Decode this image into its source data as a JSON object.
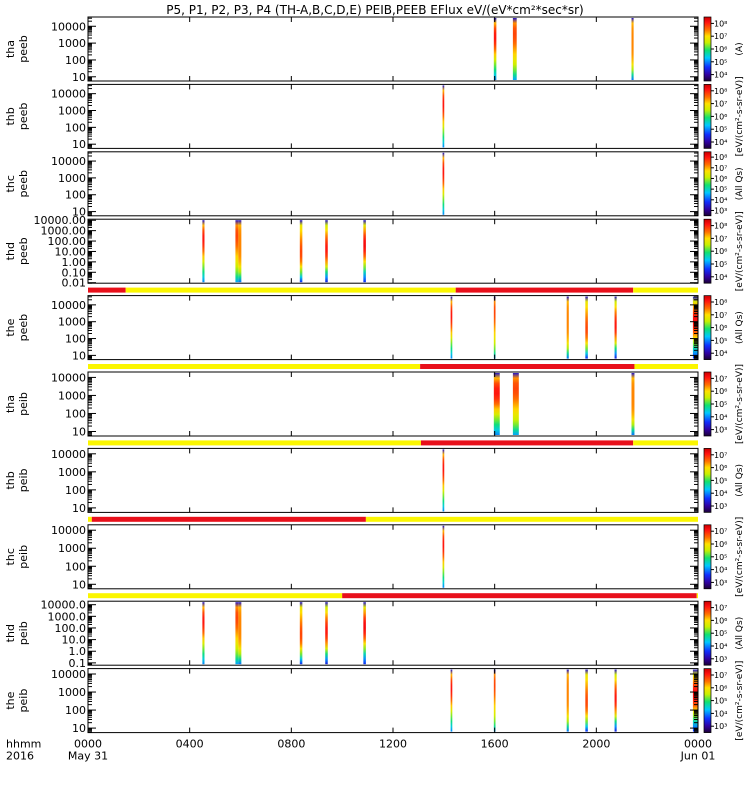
{
  "title": "P5, P1, P2, P3, P4 (TH-A,B,C,D,E) PEIB,PEEB EFlux eV/(eV*cm²*sec*sr)",
  "colors": {
    "bar_red": "#e8101b",
    "bar_yellow": "#fbf600"
  },
  "chart_data": {
    "type": "heatmap",
    "x_unit": "hhmm",
    "xlim": [
      0,
      1440
    ],
    "x_ticks": [
      "0000",
      "0400",
      "0800",
      "1200",
      "1600",
      "2000",
      "0000"
    ],
    "x_ticks_minutes": [
      0,
      240,
      480,
      720,
      960,
      1200,
      1440
    ],
    "x_year": "2016",
    "x_date_start": "May 31",
    "x_date_end": "Jun 01",
    "panels": [
      {
        "probe": "tha",
        "product": "peeb",
        "ylabel": [
          "tha",
          "peeb"
        ],
        "ylim_log": [
          0.75,
          4.55
        ],
        "y_ticks": [
          "10",
          "100",
          "1000",
          "10000"
        ],
        "y_ticks_val": [
          10,
          100,
          1000,
          10000
        ],
        "cbar_label": "(A)",
        "cbar_ticks": [
          "10⁴",
          "10⁵",
          "10⁶",
          "10⁷",
          "10⁸"
        ],
        "cbar_range_log": [
          3.6,
          8.3
        ],
        "intervals_min": [
          [
            958,
            964
          ],
          [
            1003,
            1012
          ],
          [
            1283,
            1288
          ]
        ]
      },
      {
        "probe": "thb",
        "product": "peeb",
        "ylabel": [
          "thb",
          "peeb"
        ],
        "ylim_log": [
          0.75,
          4.55
        ],
        "y_ticks": [
          "10",
          "100",
          "1000",
          "10000"
        ],
        "y_ticks_val": [
          10,
          100,
          1000,
          10000
        ],
        "cbar_label": "[eV/(cm²-s-sr-eV)]",
        "cbar_ticks": [
          "10⁴",
          "10⁵",
          "10⁶",
          "10⁷",
          "10⁸"
        ],
        "cbar_range_log": [
          3.6,
          8.3
        ],
        "intervals_min": [
          [
            837,
            841
          ]
        ]
      },
      {
        "probe": "thc",
        "product": "peeb",
        "ylabel": [
          "thc",
          "peeb"
        ],
        "ylim_log": [
          0.75,
          4.55
        ],
        "y_ticks": [
          "10",
          "100",
          "1000",
          "10000"
        ],
        "y_ticks_val": [
          10,
          100,
          1000,
          10000
        ],
        "cbar_label": "(All Qs)",
        "cbar_ticks": [
          "10³",
          "10⁴",
          "10⁵",
          "10⁶",
          "10⁷",
          "10⁸"
        ],
        "cbar_range_log": [
          2.6,
          8.3
        ],
        "intervals_min": [
          [
            837,
            841
          ]
        ]
      },
      {
        "probe": "thd",
        "product": "peeb",
        "ylabel": [
          "thd",
          "peeb"
        ],
        "ylim_log": [
          -2.05,
          4.1
        ],
        "y_ticks": [
          "0.01",
          "0.10",
          "1.00",
          "10.00",
          "100.00",
          "1000.00",
          "10000.00"
        ],
        "y_ticks_val": [
          0.01,
          0.1,
          1,
          10,
          100,
          1000,
          10000
        ],
        "cbar_label": "[eV/(cm²-s-sr-eV)]",
        "cbar_ticks": [
          "10⁴",
          "10⁵",
          "10⁶",
          "10⁷",
          "10⁸"
        ],
        "cbar_range_log": [
          3.6,
          8.3
        ],
        "intervals_min": [
          [
            270,
            275
          ],
          [
            348,
            355
          ],
          [
            355,
            362
          ],
          [
            500,
            506
          ],
          [
            560,
            566
          ],
          [
            650,
            656
          ]
        ]
      },
      {
        "probe": "the",
        "product": "peeb",
        "ylabel": [
          "the",
          "peeb"
        ],
        "ylim_log": [
          0.75,
          4.55
        ],
        "y_ticks": [
          "10",
          "100",
          "1000",
          "10000"
        ],
        "y_ticks_val": [
          10,
          100,
          1000,
          10000
        ],
        "cbar_label": "(All Qs)",
        "cbar_ticks": [
          "10⁴",
          "10⁵",
          "10⁶",
          "10⁷",
          "10⁸"
        ],
        "cbar_range_log": [
          3.6,
          8.3
        ],
        "intervals_min": [
          [
            856,
            860
          ],
          [
            958,
            962
          ],
          [
            1130,
            1135
          ],
          [
            1174,
            1180
          ],
          [
            1243,
            1248
          ],
          [
            1428,
            1440
          ]
        ],
        "mode_bar": [
          [
            "red",
            0,
            89
          ],
          [
            "yellow",
            89,
            868
          ],
          [
            "red",
            868,
            1287
          ],
          [
            "yellow",
            1287,
            1440
          ]
        ]
      },
      {
        "probe": "tha",
        "product": "peib",
        "ylabel": [
          "tha",
          "peib"
        ],
        "ylim_log": [
          0.75,
          4.3
        ],
        "y_ticks": [
          "10",
          "100",
          "1000",
          "10000"
        ],
        "y_ticks_val": [
          10,
          100,
          1000,
          10000
        ],
        "cbar_label": "[eV/(cm²-s-sr-eV)]",
        "cbar_ticks": [
          "10³",
          "10⁴",
          "10⁵",
          "10⁶",
          "10⁷"
        ],
        "cbar_range_log": [
          2.6,
          7.5
        ],
        "intervals_min": [
          [
            958,
            972
          ],
          [
            1003,
            1017
          ],
          [
            1283,
            1290
          ]
        ],
        "mode_bar": [
          [
            "yellow",
            0,
            784
          ],
          [
            "red",
            784,
            1290
          ],
          [
            "yellow",
            1290,
            1440
          ]
        ]
      },
      {
        "probe": "thb",
        "product": "peib",
        "ylabel": [
          "thb",
          "peib"
        ],
        "ylim_log": [
          0.75,
          4.3
        ],
        "y_ticks": [
          "10",
          "100",
          "1000",
          "10000"
        ],
        "y_ticks_val": [
          10,
          100,
          1000,
          10000
        ],
        "cbar_label": "(All Qs)",
        "cbar_ticks": [
          "10³",
          "10⁴",
          "10⁵",
          "10⁶",
          "10⁷"
        ],
        "cbar_range_log": [
          2.6,
          7.5
        ],
        "intervals_min": [
          [
            837,
            841
          ]
        ],
        "mode_bar": [
          [
            "yellow",
            0,
            786
          ],
          [
            "red",
            786,
            1287
          ],
          [
            "yellow",
            1287,
            1440
          ]
        ]
      },
      {
        "probe": "thc",
        "product": "peib",
        "ylabel": [
          "thc",
          "peib"
        ],
        "ylim_log": [
          0.75,
          4.3
        ],
        "y_ticks": [
          "10",
          "100",
          "1000",
          "10000"
        ],
        "y_ticks_val": [
          10,
          100,
          1000,
          10000
        ],
        "cbar_label": "[eV/(cm²-s-sr-eV)]",
        "cbar_ticks": [
          "10³",
          "10⁴",
          "10⁵",
          "10⁶",
          "10⁷"
        ],
        "cbar_range_log": [
          2.6,
          7.5
        ],
        "intervals_min": [
          [
            837,
            841
          ]
        ],
        "mode_bar": [
          [
            "yellow",
            0,
            9
          ],
          [
            "red",
            9,
            656
          ],
          [
            "yellow",
            656,
            1440
          ]
        ]
      },
      {
        "probe": "thd",
        "product": "peib",
        "ylabel": [
          "thd",
          "peib"
        ],
        "ylim_log": [
          -1.2,
          4.3
        ],
        "y_ticks": [
          "0.1",
          "1.0",
          "10.0",
          "100.0",
          "1000.0",
          "10000.0"
        ],
        "y_ticks_val": [
          0.1,
          1,
          10,
          100,
          1000,
          10000
        ],
        "cbar_label": "(All Qs)",
        "cbar_ticks": [
          "10³",
          "10⁴",
          "10⁵",
          "10⁶",
          "10⁷"
        ],
        "cbar_range_log": [
          2.6,
          7.5
        ],
        "intervals_min": [
          [
            270,
            275
          ],
          [
            348,
            355
          ],
          [
            355,
            362
          ],
          [
            500,
            506
          ],
          [
            560,
            566
          ],
          [
            650,
            656
          ]
        ],
        "mode_bar": [
          [
            "yellow",
            0,
            600
          ],
          [
            "red",
            600,
            1437
          ],
          [
            "yellow",
            1437,
            1440
          ]
        ]
      },
      {
        "probe": "the",
        "product": "peib",
        "ylabel": [
          "the",
          "peib"
        ],
        "ylim_log": [
          0.75,
          4.3
        ],
        "y_ticks": [
          "10",
          "100",
          "1000",
          "10000"
        ],
        "y_ticks_val": [
          10,
          100,
          1000,
          10000
        ],
        "cbar_label": "[eV/(cm²-s-sr-eV)]",
        "cbar_ticks": [
          "10³",
          "10⁴",
          "10⁵",
          "10⁶",
          "10⁷"
        ],
        "cbar_range_log": [
          2.6,
          7.5
        ],
        "intervals_min": [
          [
            856,
            860
          ],
          [
            958,
            962
          ],
          [
            1130,
            1135
          ],
          [
            1174,
            1180
          ],
          [
            1243,
            1248
          ],
          [
            1428,
            1440
          ]
        ]
      }
    ]
  }
}
